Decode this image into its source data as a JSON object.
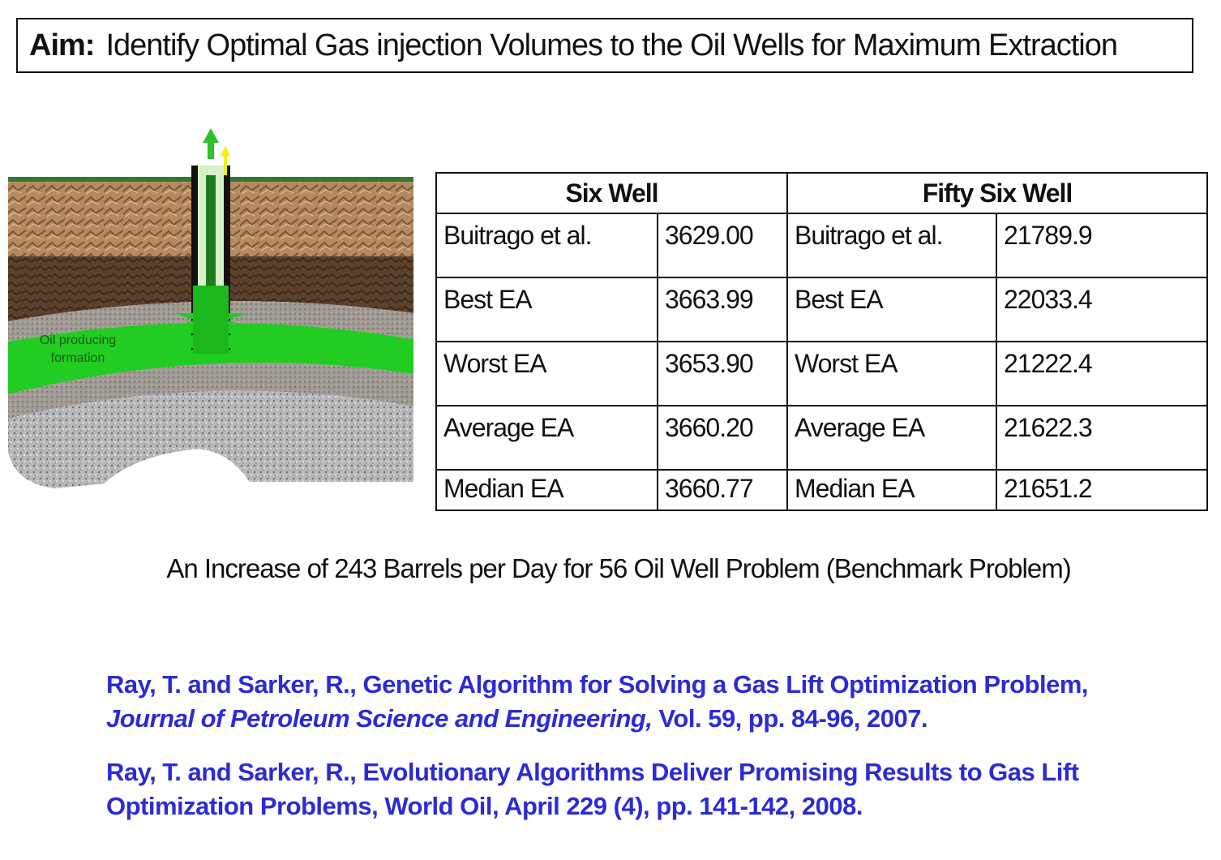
{
  "aim": {
    "label": "Aim:",
    "text": "Identify Optimal Gas injection Volumes to the Oil Wells for Maximum Extraction"
  },
  "figure": {
    "formation_label_line1": "Oil producing",
    "formation_label_line2": "formation",
    "colors": {
      "topsoil": "#b08560",
      "dark_soil": "#5a3f2a",
      "gray_layer": "#9a948e",
      "oil_formation": "#22cc22",
      "rock": "#b5b5b5"
    }
  },
  "table": {
    "headers": [
      "Six Well",
      "Fifty Six Well"
    ],
    "rows": [
      {
        "six_label": "Buitrago et al.",
        "six_value": "3629.00",
        "fifty_label": "Buitrago et al.",
        "fifty_value": "21789.9"
      },
      {
        "six_label": "Best EA",
        "six_value": "3663.99",
        "fifty_label": "Best EA",
        "fifty_value": "22033.4"
      },
      {
        "six_label": "Worst EA",
        "six_value": "3653.90",
        "fifty_label": "Worst EA",
        "fifty_value": "21222.4"
      },
      {
        "six_label": "Average EA",
        "six_value": "3660.20",
        "fifty_label": "Average EA",
        "fifty_value": "21622.3"
      },
      {
        "six_label": "Median EA",
        "six_value": "3660.77",
        "fifty_label": "Median EA",
        "fifty_value": "21651.2"
      }
    ]
  },
  "increase_note": "An Increase of 243 Barrels per Day for 56 Oil Well Problem (Benchmark Problem)",
  "references": [
    {
      "part1": "Ray, T. and Sarker, R., Genetic Algorithm for Solving a Gas Lift Optimization Problem,",
      "journal": "Journal of Petroleum Science and Engineering,",
      "part2": " Vol. 59, pp. 84-96, 2007."
    },
    {
      "part1": "Ray, T. and Sarker, R., Evolutionary Algorithms Deliver Promising Results to Gas Lift Optimization Problems, World Oil, April 229 (4), pp. 141-142, 2008."
    }
  ],
  "accent_color": "#2b2bd6"
}
